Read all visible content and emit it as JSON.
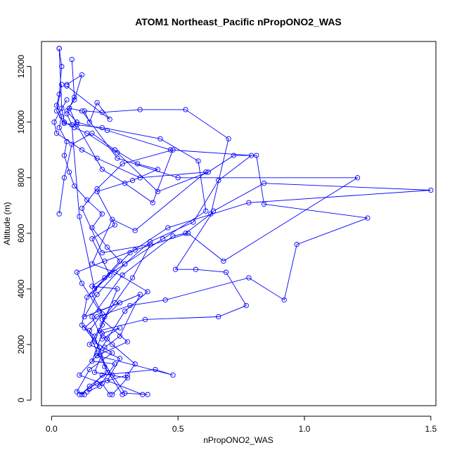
{
  "chart_data": {
    "type": "line",
    "title": "ATOM1 Northeast_Pacific nPropONO2_WAS",
    "xlabel": "nPropONO2_WAS",
    "ylabel": "Altitude (m)",
    "xlim": [
      -0.04,
      1.52
    ],
    "ylim": [
      -200,
      12900
    ],
    "x_ticks": [
      0.0,
      0.5,
      1.0,
      1.5
    ],
    "x_tick_labels": [
      "0.0",
      "0.5",
      "1.0",
      "1.5"
    ],
    "y_ticks": [
      0,
      2000,
      4000,
      6000,
      8000,
      10000,
      12000
    ],
    "y_tick_labels": [
      "0",
      "2000",
      "4000",
      "6000",
      "8000",
      "10000",
      "12000"
    ],
    "grid": false,
    "legend": "none",
    "color": "#0000ff",
    "marker": "open-circle",
    "series": [
      {
        "x": [
          0.38,
          0.29,
          0.24,
          0.18,
          0.15,
          0.2,
          0.16,
          0.21,
          0.27,
          0.22,
          0.16,
          0.2,
          0.14,
          0.09,
          0.07,
          0.05,
          0.06,
          0.03,
          0.04,
          0.02,
          0.03,
          0.04,
          0.03
        ],
        "y": [
          200,
          250,
          900,
          1700,
          2500,
          3100,
          3800,
          4400,
          5000,
          5500,
          6200,
          6700,
          7200,
          7700,
          8200,
          8800,
          9300,
          9800,
          10200,
          10600,
          11000,
          12000,
          12650
        ]
      },
      {
        "x": [
          0.12,
          0.15,
          0.22,
          0.19,
          0.13,
          0.18,
          0.31,
          0.45,
          0.78,
          0.92,
          0.97,
          1.25,
          0.84,
          0.81,
          0.72,
          0.62,
          0.42,
          0.26,
          0.14,
          0.09,
          0.05,
          0.04,
          0.03
        ],
        "y": [
          200,
          500,
          1000,
          1900,
          2600,
          3000,
          3400,
          3600,
          4400,
          3600,
          5600,
          6550,
          7050,
          8800,
          8800,
          8200,
          7500,
          8900,
          9600,
          9800,
          10000,
          10500,
          12650
        ]
      },
      {
        "x": [
          0.11,
          0.18,
          0.3,
          0.33,
          0.24,
          0.19,
          0.37,
          0.66,
          0.77,
          0.69,
          0.57,
          0.49,
          0.64,
          0.84,
          1.5,
          0.78,
          0.46,
          0.31,
          0.17,
          0.11,
          0.08,
          0.06
        ],
        "y": [
          200,
          600,
          900,
          1300,
          2000,
          2500,
          2900,
          3000,
          3400,
          4600,
          4700,
          4700,
          6800,
          7800,
          7550,
          7100,
          6200,
          5300,
          4000,
          6600,
          9900,
          10300
        ]
      },
      {
        "x": [
          0.24,
          0.3,
          0.17,
          0.21,
          0.27,
          0.35,
          0.19,
          0.12,
          0.1,
          0.21,
          0.33,
          0.54,
          0.68,
          1.21,
          0.5,
          0.26,
          0.12,
          0.07,
          0.09,
          0.08
        ],
        "y": [
          200,
          800,
          1000,
          1900,
          2300,
          3800,
          3200,
          4200,
          4600,
          5000,
          5400,
          6000,
          5000,
          8000,
          8000,
          8700,
          10400,
          10500,
          10900,
          12250
        ]
      },
      {
        "x": [
          0.36,
          0.22,
          0.27,
          0.15,
          0.2,
          0.26,
          0.16,
          0.29,
          0.39,
          0.56,
          0.66,
          0.79,
          0.47,
          0.22,
          0.1,
          0.06,
          0.09,
          0.12,
          0.06
        ],
        "y": [
          200,
          700,
          1500,
          2000,
          2700,
          4000,
          4100,
          4900,
          5700,
          6400,
          7900,
          8800,
          9000,
          9700,
          10000,
          10400,
          10800,
          11700,
          11350
        ]
      },
      {
        "x": [
          0.14,
          0.19,
          0.25,
          0.16,
          0.2,
          0.27,
          0.2,
          0.16,
          0.28,
          0.48,
          0.53,
          0.63,
          0.7,
          0.53,
          0.35,
          0.2,
          0.13,
          0.15,
          0.18,
          0.23,
          0.06
        ],
        "y": [
          300,
          500,
          1300,
          1400,
          2400,
          2600,
          2200,
          3000,
          4500,
          5900,
          6000,
          6700,
          9400,
          10450,
          10450,
          10350,
          10400,
          10000,
          10700,
          10100,
          11300
        ]
      },
      {
        "x": [
          0.15,
          0.2,
          0.41,
          0.48,
          0.18,
          0.22,
          0.29,
          0.38,
          0.25,
          0.16,
          0.24,
          0.33,
          0.61,
          0.35,
          0.18,
          0.12,
          0.02,
          0.01,
          0.06
        ],
        "y": [
          400,
          900,
          1100,
          900,
          1600,
          2200,
          3200,
          3900,
          4600,
          4900,
          6500,
          6100,
          8200,
          8000,
          8700,
          9000,
          9600,
          10000,
          10800
        ]
      },
      {
        "x": [
          0.13,
          0.1,
          0.15,
          0.24,
          0.17,
          0.21,
          0.25,
          0.32,
          0.39,
          0.2,
          0.12,
          0.18,
          0.28,
          0.48,
          0.4,
          0.29,
          0.2,
          0.1,
          0.07
        ],
        "y": [
          200,
          300,
          1100,
          1700,
          2100,
          3000,
          3500,
          4400,
          5600,
          5300,
          6900,
          7600,
          8500,
          9000,
          7100,
          7800,
          8300,
          9900,
          10500
        ]
      },
      {
        "x": [
          0.23,
          0.2,
          0.11,
          0.18,
          0.3,
          0.2,
          0.27,
          0.13,
          0.18,
          0.29,
          0.44,
          0.61,
          0.58,
          0.43,
          0.2,
          0.05,
          0.02,
          0.04
        ],
        "y": [
          200,
          600,
          900,
          1600,
          2100,
          2900,
          3500,
          3000,
          3800,
          4900,
          5800,
          6800,
          8600,
          9400,
          9800,
          9950,
          10400,
          11350
        ]
      },
      {
        "x": [
          0.28,
          0.21,
          0.17,
          0.12,
          0.14,
          0.23,
          0.16,
          0.25,
          0.18,
          0.32,
          0.42,
          0.34,
          0.25,
          0.16,
          0.08,
          0.05,
          0.03
        ],
        "y": [
          200,
          1200,
          2300,
          2700,
          3700,
          4500,
          5800,
          6300,
          7500,
          7900,
          8300,
          8500,
          9000,
          9600,
          9200,
          8000,
          6700
        ]
      }
    ]
  }
}
